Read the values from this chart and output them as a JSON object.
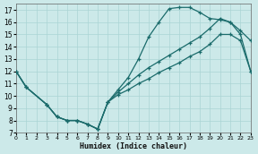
{
  "xlabel": "Humidex (Indice chaleur)",
  "bg_color": "#cce9e9",
  "grid_color": "#aad4d4",
  "line_color": "#1a6b6b",
  "xlim": [
    0,
    23
  ],
  "ylim": [
    7,
    17.5
  ],
  "xticks": [
    0,
    1,
    2,
    3,
    4,
    5,
    6,
    7,
    8,
    9,
    10,
    11,
    12,
    13,
    14,
    15,
    16,
    17,
    18,
    19,
    20,
    21,
    22,
    23
  ],
  "yticks": [
    7,
    8,
    9,
    10,
    11,
    12,
    13,
    14,
    15,
    16,
    17
  ],
  "curve1_x": [
    0,
    1,
    3,
    4,
    5,
    6,
    7,
    8,
    9,
    10,
    11,
    12,
    13,
    14,
    15,
    16,
    17,
    18,
    19,
    20,
    21,
    22,
    23
  ],
  "curve1_y": [
    12.0,
    10.7,
    9.3,
    8.3,
    8.0,
    8.0,
    7.7,
    7.3,
    9.5,
    10.5,
    11.5,
    13.0,
    14.8,
    16.0,
    17.1,
    17.2,
    17.2,
    16.8,
    16.3,
    16.2,
    16.0,
    15.3,
    14.5
  ],
  "curve2_x": [
    0,
    1,
    3,
    4,
    5,
    6,
    7,
    8,
    9,
    10,
    11,
    12,
    13,
    14,
    15,
    16,
    17,
    18,
    19,
    20,
    21,
    22,
    23
  ],
  "curve2_y": [
    12.0,
    10.7,
    9.3,
    8.3,
    8.0,
    8.0,
    7.7,
    7.3,
    9.5,
    10.3,
    11.0,
    11.7,
    12.3,
    12.8,
    13.3,
    13.8,
    14.3,
    14.8,
    15.5,
    16.3,
    16.0,
    15.0,
    12.0
  ],
  "curve3_x": [
    0,
    1,
    3,
    4,
    5,
    6,
    7,
    8,
    9,
    10,
    11,
    12,
    13,
    14,
    15,
    16,
    17,
    18,
    19,
    20,
    21,
    22,
    23
  ],
  "curve3_y": [
    12.0,
    10.7,
    9.3,
    8.3,
    8.0,
    8.0,
    7.7,
    7.3,
    9.5,
    10.1,
    10.5,
    11.0,
    11.4,
    11.9,
    12.3,
    12.7,
    13.2,
    13.6,
    14.2,
    15.0,
    15.0,
    14.5,
    12.0
  ]
}
